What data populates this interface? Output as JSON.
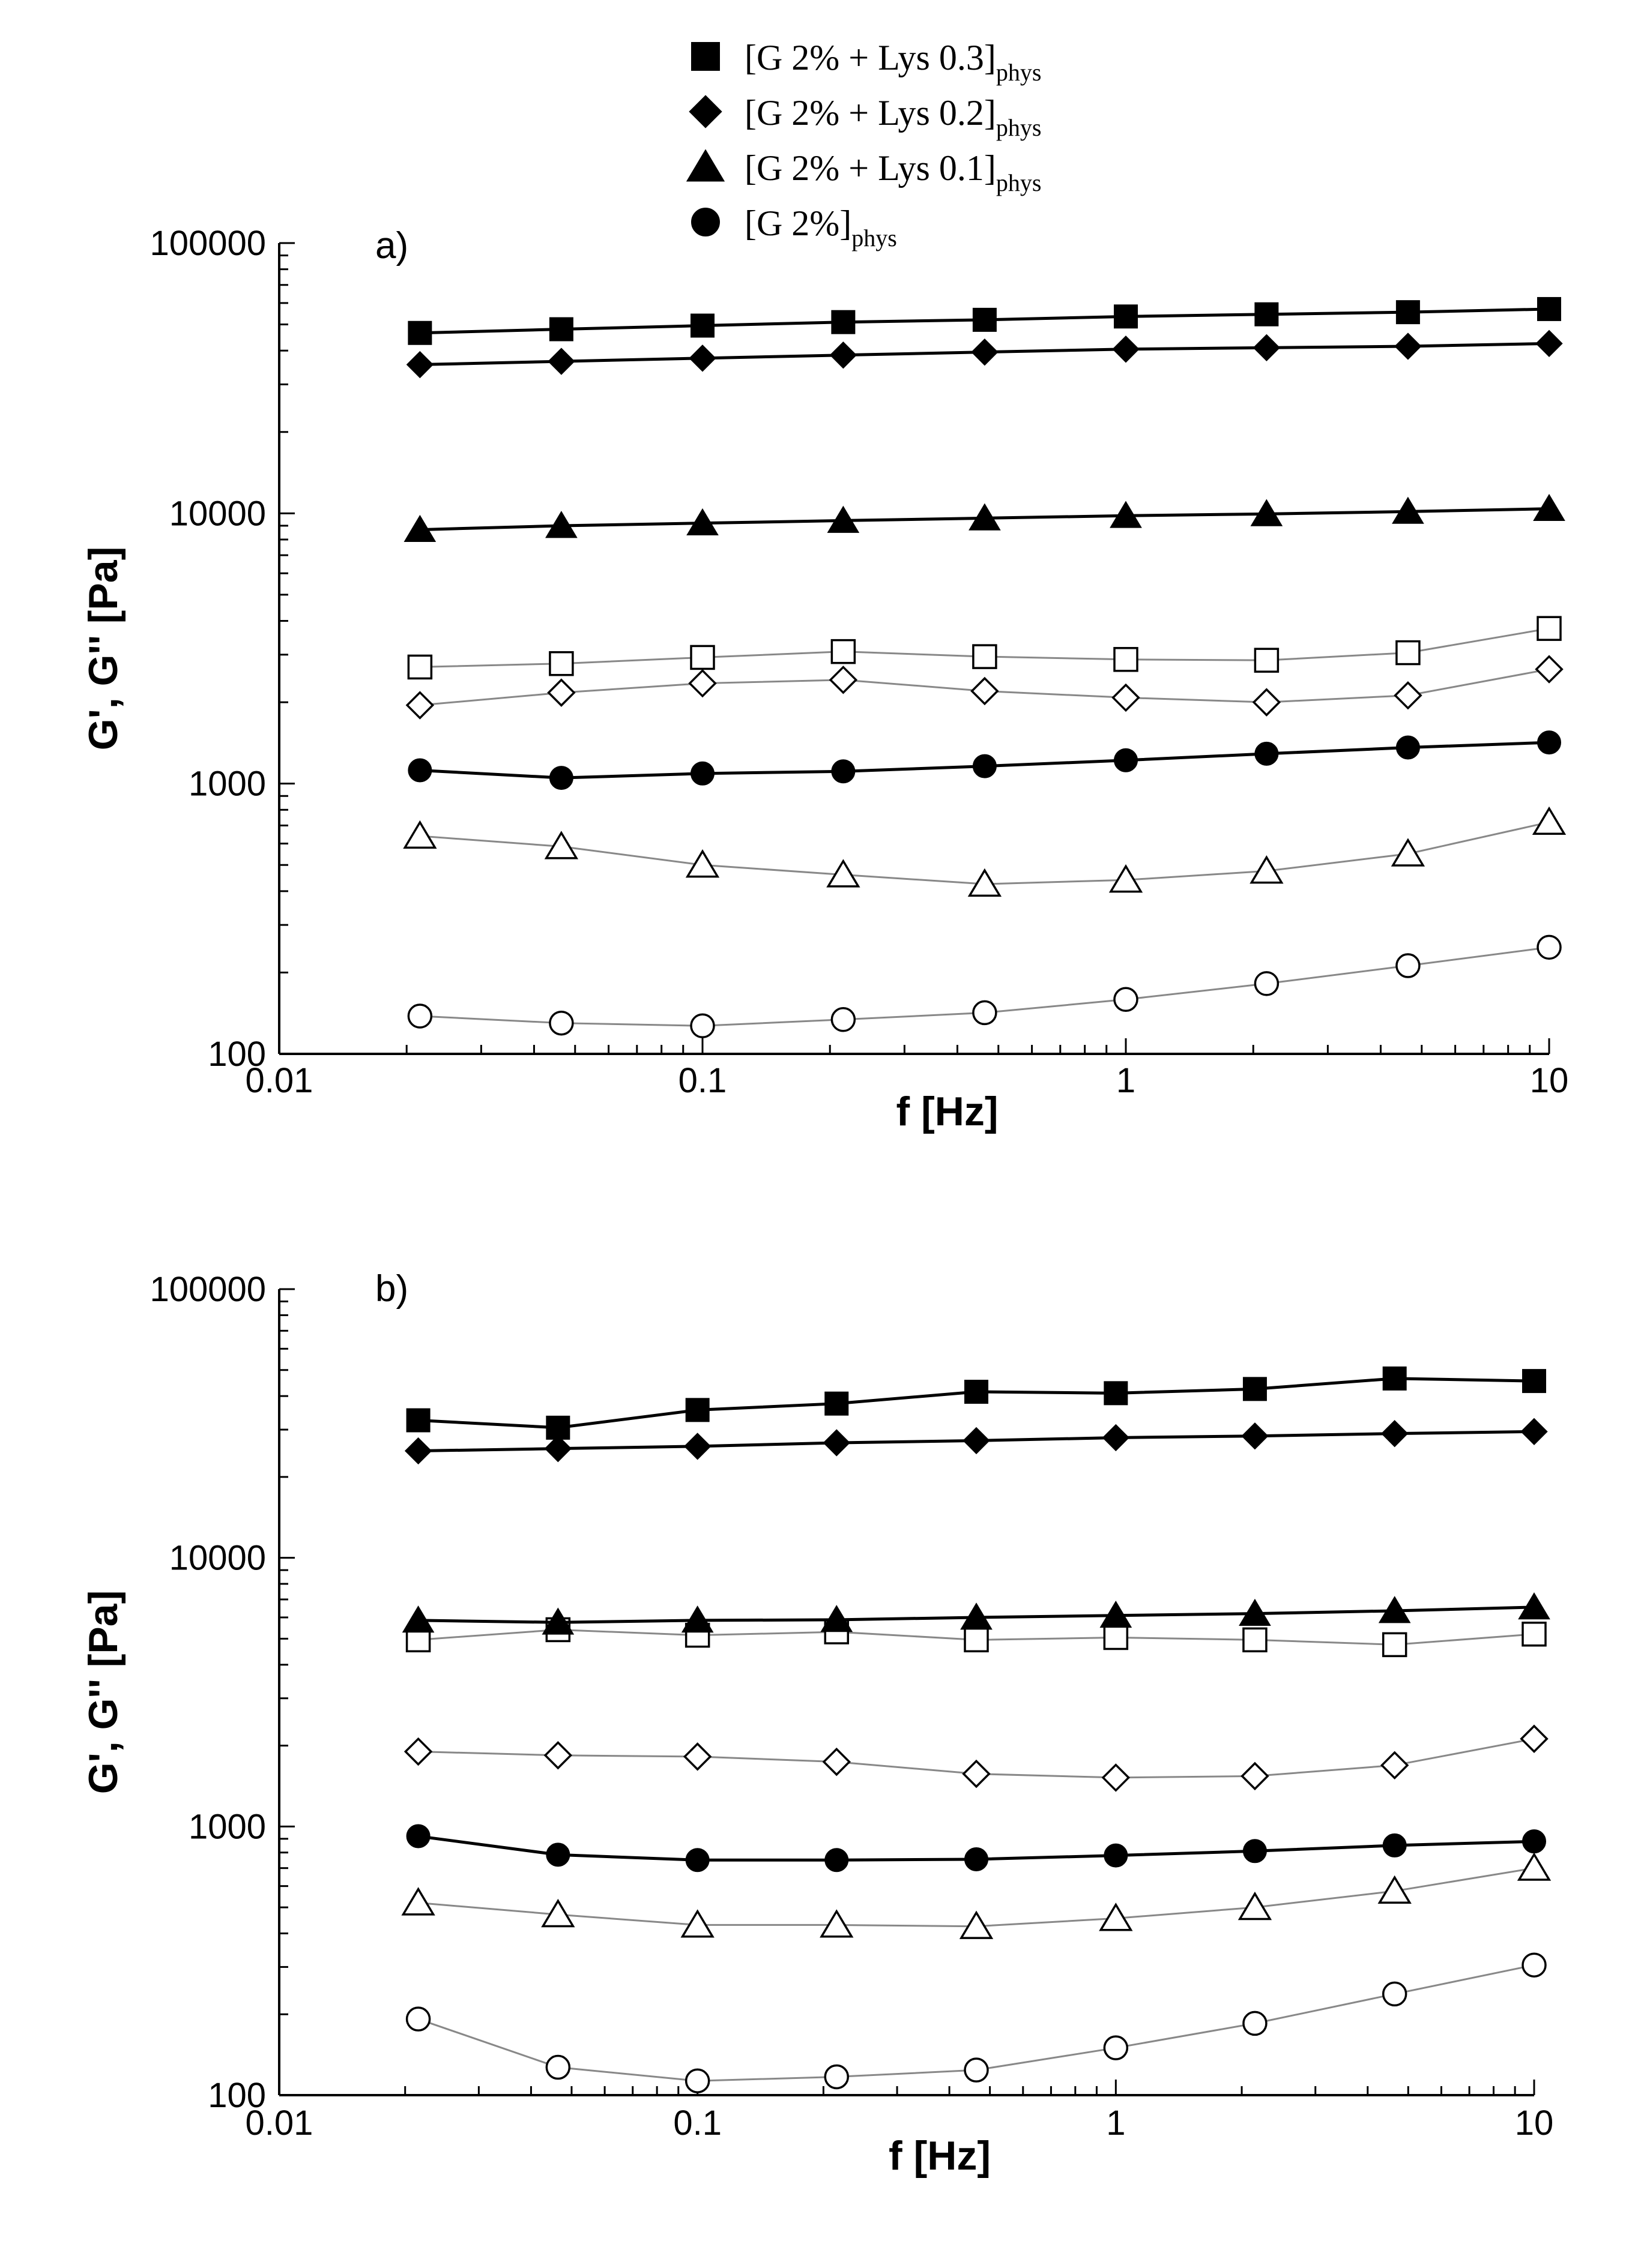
{
  "legend": {
    "entries": [
      {
        "marker": "square",
        "main": "[G 2% + Lys 0.3]",
        "sub": "phys"
      },
      {
        "marker": "diamond",
        "main": "[G 2% + Lys 0.2]",
        "sub": "phys"
      },
      {
        "marker": "triangle",
        "main": "[G 2% + Lys 0.1]",
        "sub": "phys"
      },
      {
        "marker": "circle",
        "main": "[G 2%]",
        "sub": "phys"
      }
    ]
  },
  "chart_data": [
    {
      "type": "scatter",
      "panel_label": "a)",
      "xlabel": "f [Hz]",
      "ylabel": "G', G'' [Pa]",
      "x_scale": "log",
      "y_scale": "log",
      "xlim": [
        0.01,
        10
      ],
      "ylim": [
        100,
        100000
      ],
      "x_ticks": [
        "0.01",
        "0.1",
        "1",
        "10"
      ],
      "y_ticks": [
        "100",
        "1000",
        "10000",
        "100000"
      ],
      "grid": false,
      "x": [
        0.0215,
        0.0464,
        0.1,
        0.215,
        0.464,
        1,
        2.15,
        4.64,
        10
      ],
      "series": [
        {
          "marker": "square",
          "fill": "filled",
          "values": [
            46500,
            48000,
            49500,
            51000,
            52000,
            53500,
            54500,
            55500,
            57000
          ]
        },
        {
          "marker": "diamond",
          "fill": "filled",
          "values": [
            35500,
            36500,
            37500,
            38500,
            39500,
            40500,
            41000,
            41500,
            42500
          ]
        },
        {
          "marker": "triangle",
          "fill": "filled",
          "values": [
            8700,
            9000,
            9200,
            9400,
            9600,
            9800,
            9950,
            10150,
            10400
          ]
        },
        {
          "marker": "circle",
          "fill": "filled",
          "values": [
            1120,
            1050,
            1090,
            1110,
            1160,
            1220,
            1290,
            1360,
            1420
          ]
        },
        {
          "marker": "square",
          "fill": "open",
          "values": [
            2700,
            2780,
            2930,
            3080,
            2950,
            2880,
            2860,
            3050,
            3750
          ]
        },
        {
          "marker": "diamond",
          "fill": "open",
          "values": [
            1950,
            2170,
            2350,
            2420,
            2200,
            2080,
            2000,
            2120,
            2650
          ]
        },
        {
          "marker": "triangle",
          "fill": "open",
          "values": [
            640,
            585,
            500,
            460,
            425,
            440,
            475,
            550,
            720
          ]
        },
        {
          "marker": "circle",
          "fill": "open",
          "values": [
            138,
            130,
            127,
            134,
            142,
            159,
            182,
            212,
            248
          ]
        }
      ]
    },
    {
      "type": "scatter",
      "panel_label": "b)",
      "xlabel": "f [Hz]",
      "ylabel": "G', G'' [Pa]",
      "x_scale": "log",
      "y_scale": "log",
      "xlim": [
        0.01,
        10
      ],
      "ylim": [
        100,
        100000
      ],
      "x_ticks": [
        "0.01",
        "0.1",
        "1",
        "10"
      ],
      "y_ticks": [
        "100",
        "1000",
        "10000",
        "100000"
      ],
      "grid": false,
      "x": [
        0.0215,
        0.0464,
        0.1,
        0.215,
        0.464,
        1,
        2.15,
        4.64,
        10
      ],
      "series": [
        {
          "marker": "square",
          "fill": "filled",
          "values": [
            32500,
            30500,
            35500,
            37500,
            41500,
            41000,
            42500,
            46500,
            45500
          ]
        },
        {
          "marker": "diamond",
          "fill": "filled",
          "values": [
            25000,
            25500,
            26000,
            26800,
            27300,
            28000,
            28400,
            29000,
            29500
          ]
        },
        {
          "marker": "triangle",
          "fill": "filled",
          "values": [
            5850,
            5750,
            5850,
            5880,
            6000,
            6100,
            6200,
            6350,
            6550
          ]
        },
        {
          "marker": "circle",
          "fill": "filled",
          "values": [
            920,
            785,
            750,
            750,
            755,
            780,
            810,
            850,
            880
          ]
        },
        {
          "marker": "square",
          "fill": "open",
          "values": [
            4950,
            5400,
            5150,
            5300,
            4950,
            5050,
            4950,
            4750,
            5200
          ]
        },
        {
          "marker": "diamond",
          "fill": "open",
          "values": [
            1900,
            1840,
            1820,
            1740,
            1570,
            1520,
            1540,
            1690,
            2120
          ]
        },
        {
          "marker": "triangle",
          "fill": "open",
          "values": [
            520,
            470,
            430,
            430,
            425,
            455,
            500,
            575,
            700
          ]
        },
        {
          "marker": "circle",
          "fill": "open",
          "values": [
            192,
            127,
            113,
            117,
            124,
            150,
            185,
            238,
            305
          ]
        }
      ]
    }
  ]
}
